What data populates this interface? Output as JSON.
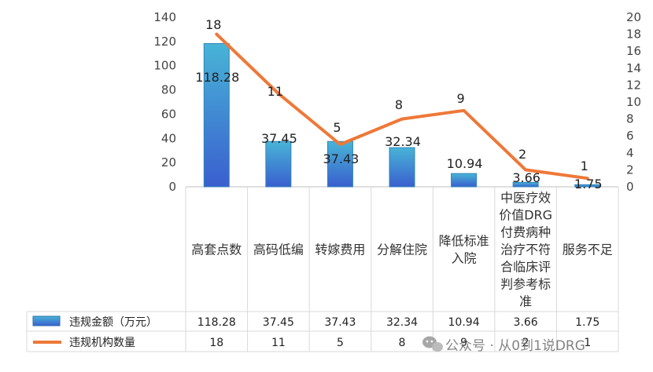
{
  "chart_data": {
    "type": "bar",
    "categories": [
      [
        "高套点数"
      ],
      [
        "高码低编"
      ],
      [
        "转嫁费用"
      ],
      [
        "分解住院"
      ],
      [
        "降低标准",
        "入院"
      ],
      [
        "中医疗效",
        "价值DRG",
        "付费病种",
        "治疗不符",
        "合临床评",
        "判参考标",
        "准"
      ],
      [
        "服务不足"
      ]
    ],
    "series": [
      {
        "name": "违规金额（万元）",
        "type": "bar",
        "axis": "left",
        "values": [
          118.28,
          37.45,
          37.43,
          32.34,
          10.94,
          3.66,
          1.75
        ],
        "labels": [
          "118.28",
          "37.45",
          "37.43",
          "32.34",
          "10.94",
          "3.66",
          "1.75"
        ],
        "table_values": [
          "118.28",
          "37.45",
          "37.43",
          "32.34",
          "10.94",
          "3.66",
          "1.75"
        ]
      },
      {
        "name": "违规机构数量",
        "type": "line",
        "axis": "right",
        "values": [
          18,
          11,
          5,
          8,
          9,
          2,
          1
        ],
        "labels": [
          "18",
          "11",
          "5",
          "8",
          "9",
          "2",
          "1"
        ],
        "table_values": [
          "18",
          "11",
          "5",
          "8",
          "9",
          "2",
          "1"
        ]
      }
    ],
    "y_left": {
      "min": 0,
      "max": 140,
      "step": 20,
      "ticks": [
        "0",
        "20",
        "40",
        "60",
        "80",
        "100",
        "120",
        "140"
      ]
    },
    "y_right": {
      "min": 0,
      "max": 20,
      "step": 2,
      "ticks": [
        "0",
        "2",
        "4",
        "6",
        "8",
        "10",
        "12",
        "14",
        "16",
        "18",
        "20"
      ]
    },
    "colors": {
      "bar_top": "#48b4d6",
      "bar_bottom": "#3a5fcf",
      "line": "#ee7838",
      "grid": "#d9d9d9",
      "axis": "#bfbfbf"
    },
    "legend_placement": "data-table",
    "grid": false
  },
  "watermark": {
    "icon": "wechat-icon",
    "text": "公众号 · 从0到1说DRG"
  }
}
